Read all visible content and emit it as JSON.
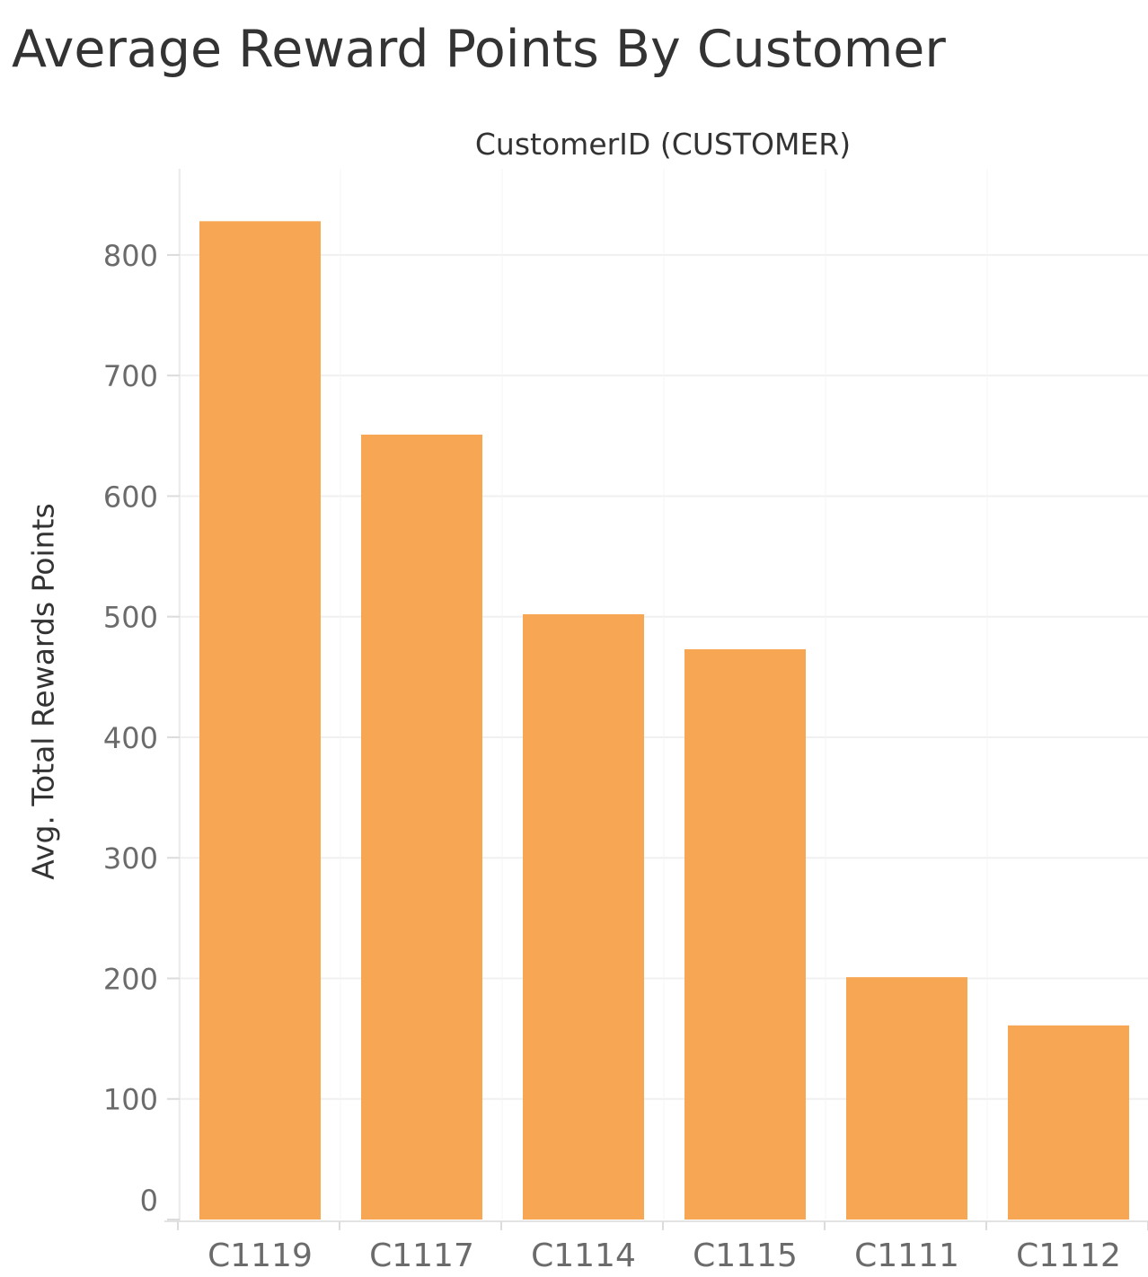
{
  "chart_data": {
    "type": "bar",
    "title": "Average Reward Points By Customer",
    "header": "CustomerID (CUSTOMER)",
    "ylabel": "Avg. Total Rewards Points",
    "xlabel": "",
    "categories": [
      "C1119",
      "C1117",
      "C1114",
      "C1115",
      "C1111",
      "C1112"
    ],
    "values": [
      828,
      651,
      502,
      473,
      201,
      161
    ],
    "yticks": [
      0,
      100,
      200,
      300,
      400,
      500,
      600,
      700,
      800
    ],
    "ylim": [
      0,
      840
    ],
    "grid": true,
    "legend": "none",
    "bar_color": "#f7a654",
    "grid_color": "#f0f0f0"
  }
}
